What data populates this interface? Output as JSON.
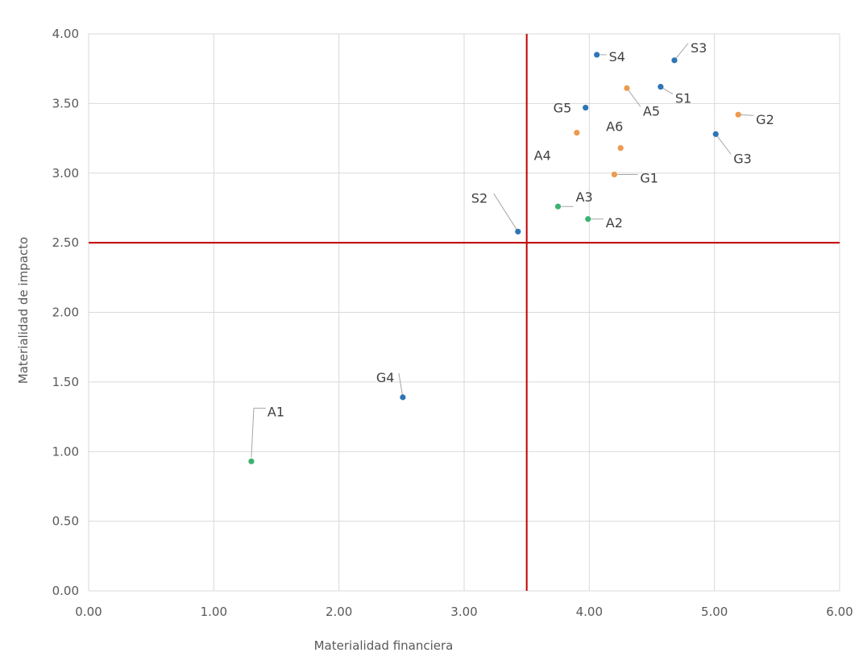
{
  "chart_data": {
    "type": "scatter",
    "title": "",
    "xlabel": "Materialidad financiera",
    "ylabel": "Materialidad de impacto",
    "xlim": [
      0,
      6
    ],
    "ylim": [
      0,
      4
    ],
    "x_ticks": [
      "0.00",
      "1.00",
      "2.00",
      "3.00",
      "4.00",
      "5.00",
      "6.00"
    ],
    "y_ticks": [
      "0.00",
      "0.50",
      "1.00",
      "1.50",
      "2.00",
      "2.50",
      "3.00",
      "3.50",
      "4.00"
    ],
    "grid": true,
    "legend": "none",
    "reference_lines": {
      "x": 3.5,
      "y": 2.5,
      "color": "#c00000"
    },
    "colors": {
      "ambiental": "#3cb371",
      "social": "#2e75b6",
      "gobernanza": "#ed9a4e"
    },
    "points": [
      {
        "label": "A1",
        "x": 1.3,
        "y": 0.93,
        "color": "#3cb371"
      },
      {
        "label": "A2",
        "x": 3.99,
        "y": 2.67,
        "color": "#3cb371"
      },
      {
        "label": "A3",
        "x": 3.75,
        "y": 2.76,
        "color": "#3cb371"
      },
      {
        "label": "A4",
        "x": 3.9,
        "y": 3.29,
        "color": "#ed9a4e"
      },
      {
        "label": "A5",
        "x": 4.3,
        "y": 3.61,
        "color": "#ed9a4e"
      },
      {
        "label": "A6",
        "x": 4.25,
        "y": 3.18,
        "color": "#ed9a4e"
      },
      {
        "label": "G1",
        "x": 4.2,
        "y": 2.99,
        "color": "#ed9a4e"
      },
      {
        "label": "G2",
        "x": 5.19,
        "y": 3.42,
        "color": "#ed9a4e"
      },
      {
        "label": "G3",
        "x": 5.01,
        "y": 3.28,
        "color": "#2e75b6"
      },
      {
        "label": "G4",
        "x": 2.51,
        "y": 1.39,
        "color": "#2e75b6"
      },
      {
        "label": "G5",
        "x": 3.97,
        "y": 3.47,
        "color": "#2e75b6"
      },
      {
        "label": "S1",
        "x": 4.57,
        "y": 3.62,
        "color": "#2e75b6"
      },
      {
        "label": "S2",
        "x": 3.43,
        "y": 2.58,
        "color": "#2e75b6"
      },
      {
        "label": "S3",
        "x": 4.68,
        "y": 3.81,
        "color": "#2e75b6"
      },
      {
        "label": "S4",
        "x": 4.06,
        "y": 3.85,
        "color": "#2e75b6"
      }
    ]
  }
}
